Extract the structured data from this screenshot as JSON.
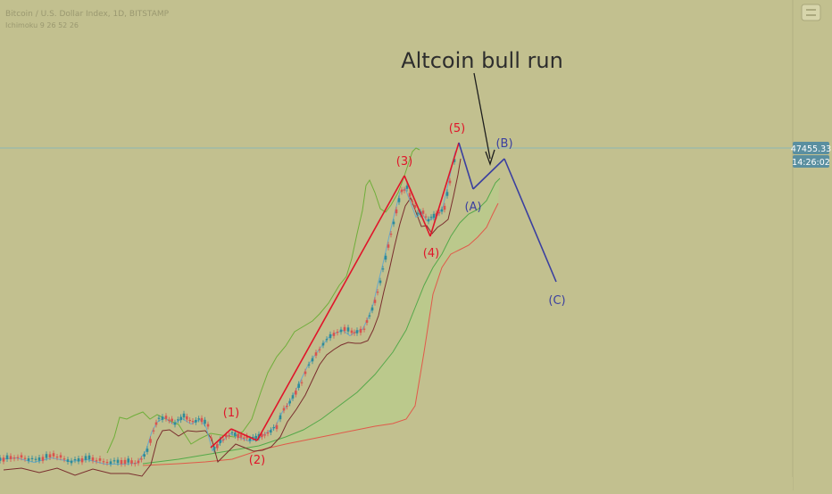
{
  "header": {
    "symbol_line": "Bitcoin / U.S. Dollar Index, 1D, BITSTAMP",
    "sub_line": "Ichimoku 9 26 52 26"
  },
  "colors": {
    "background": "#c2c08f",
    "price_line": "#8bb7b6",
    "up_candle": "#2e8b9a",
    "down_candle": "#d9534f",
    "tenkan": "#6aa9c8",
    "kijun": "#7a2e2e",
    "chikou": "#6fae3a",
    "span_a": "#55a84a",
    "span_b": "#e05a4a",
    "cloud": "#b7cf8a",
    "impulse": "#e0152a",
    "correction": "#3a3fa0",
    "current_price_box": "#5a8fa0"
  },
  "price_tag": {
    "value": "47455.33",
    "countdown": "14:26:02"
  },
  "annotation": {
    "text": "Altcoin bull run"
  },
  "chart_data": {
    "type": "line",
    "title": "",
    "x_axis": {
      "label": "",
      "ticks": []
    },
    "y_axis": {
      "label": "",
      "ticks": []
    },
    "elliott_impulse": {
      "labels": [
        "(1)",
        "(2)",
        "(3)",
        "(4)",
        "(5)"
      ],
      "points": [
        {
          "x": 0,
          "y": 0
        },
        {
          "x": 1,
          "y": 0.12
        },
        {
          "x": 2,
          "y": 0.05
        },
        {
          "x": 3,
          "y": 0.78
        },
        {
          "x": 4,
          "y": 0.55
        },
        {
          "x": 5,
          "y": 0.93
        }
      ]
    },
    "elliott_correction": {
      "labels": [
        "(A)",
        "(B)",
        "(C)"
      ],
      "points": [
        {
          "x": 5,
          "y": 0.93
        },
        {
          "x": 6,
          "y": 0.8
        },
        {
          "x": 7,
          "y": 0.89
        },
        {
          "x": 8,
          "y": 0.45
        }
      ]
    }
  }
}
